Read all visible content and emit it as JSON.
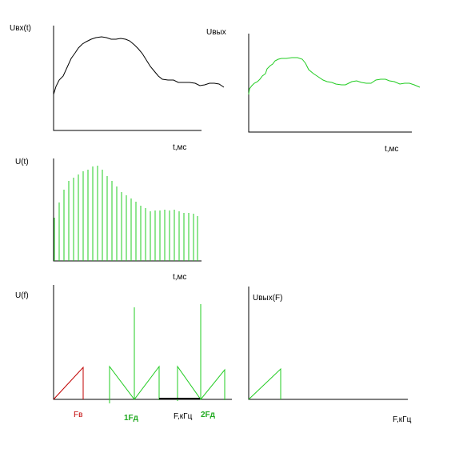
{
  "panels": {
    "input_signal": {
      "y_label": "Uвх(t)",
      "x_label": "t,мс"
    },
    "output_signal": {
      "y_label": "Uвых",
      "x_label": "t,мс"
    },
    "sampled_signal": {
      "y_label": "U(t)",
      "x_label": "t,мс"
    },
    "input_spectrum": {
      "y_label": "U(f)",
      "x_label": "F,кГц",
      "marker_fv": "Fв",
      "marker_1fd": "1Fд",
      "marker_2fd": "2Fд"
    },
    "output_spectrum": {
      "y_label": "Uвых(F)",
      "x_label": "F,кГц"
    }
  },
  "colors": {
    "axis": "#000000",
    "input_curve": "#000000",
    "output_curve": "#22cc22",
    "samples": "#22cc22",
    "baseband": "#c00000"
  }
}
